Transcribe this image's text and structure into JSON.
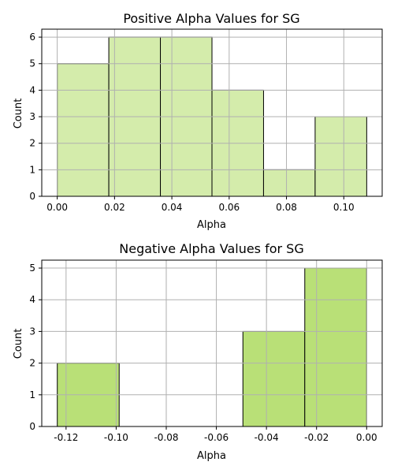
{
  "chart_data": [
    {
      "type": "bar",
      "subtype": "histogram",
      "title": "Positive Alpha Values for SG",
      "xlabel": "Alpha",
      "ylabel": "Count",
      "bin_edges": [
        0.0,
        0.018,
        0.036,
        0.054,
        0.072,
        0.09,
        0.108
      ],
      "values": [
        5,
        6,
        6,
        4,
        1,
        3
      ],
      "xlim": [
        -0.0054,
        0.1134
      ],
      "ylim": [
        0,
        6.3
      ],
      "xticks": [
        0.0,
        0.02,
        0.04,
        0.06,
        0.08,
        0.1
      ],
      "xtick_labels": [
        "0.00",
        "0.02",
        "0.04",
        "0.06",
        "0.08",
        "0.10"
      ],
      "yticks": [
        0,
        1,
        2,
        3,
        4,
        5,
        6
      ],
      "ytick_labels": [
        "0",
        "1",
        "2",
        "3",
        "4",
        "5",
        "6"
      ],
      "grid": true,
      "colors": {
        "bar": "#d4ecab",
        "edge": "#000000"
      }
    },
    {
      "type": "bar",
      "subtype": "histogram",
      "title": "Negative Alpha Values for SG",
      "xlabel": "Alpha",
      "ylabel": "Count",
      "bin_edges": [
        -0.1235,
        -0.0988,
        -0.0741,
        -0.0494,
        -0.0247,
        0.0
      ],
      "values": [
        2,
        0,
        0,
        3,
        5
      ],
      "xlim": [
        -0.1297,
        0.0062
      ],
      "ylim": [
        0,
        5.25
      ],
      "xticks": [
        -0.12,
        -0.1,
        -0.08,
        -0.06,
        -0.04,
        -0.02,
        0.0
      ],
      "xtick_labels": [
        "-0.12",
        "-0.10",
        "-0.08",
        "-0.06",
        "-0.04",
        "-0.02",
        "0.00"
      ],
      "yticks": [
        0,
        1,
        2,
        3,
        4,
        5
      ],
      "ytick_labels": [
        "0",
        "1",
        "2",
        "3",
        "4",
        "5"
      ],
      "grid": true,
      "colors": {
        "bar": "#b9e077",
        "edge": "#000000"
      }
    }
  ]
}
